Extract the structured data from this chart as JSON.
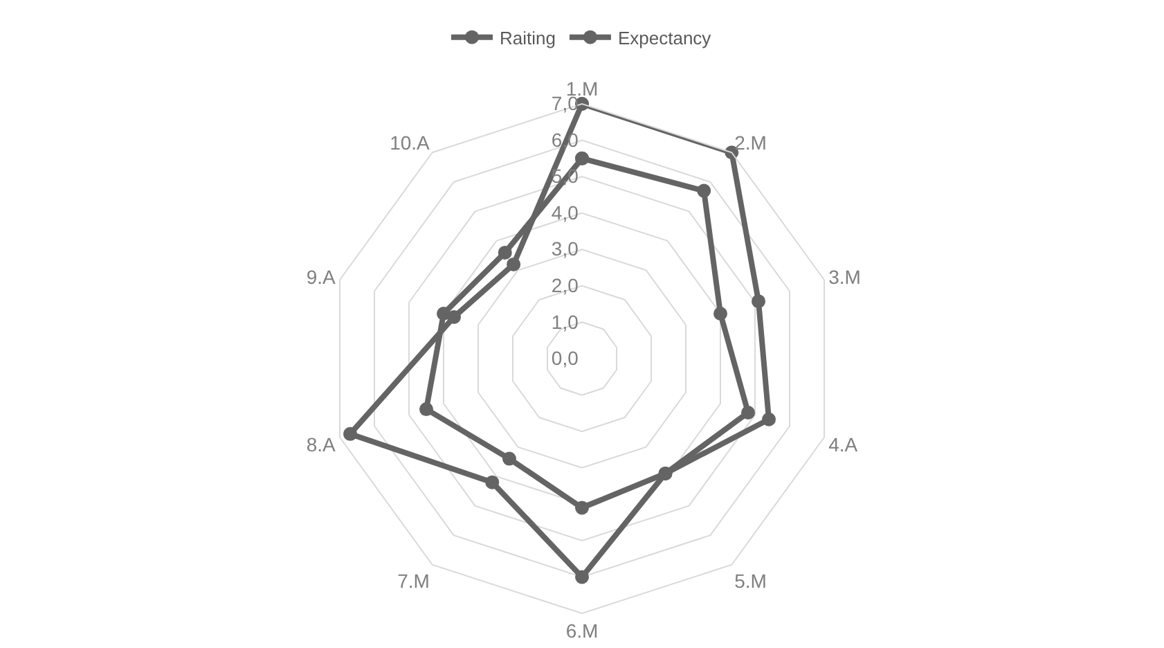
{
  "chart_data": {
    "type": "radar",
    "categories": [
      "1.M",
      "2.M",
      "3.M",
      "4.A",
      "5.M",
      "6.M",
      "7.M",
      "8.A",
      "9.A",
      "10.A"
    ],
    "series": [
      {
        "name": "Raiting",
        "color": "#646464",
        "values": [
          5.5,
          5.7,
          4.0,
          4.8,
          3.9,
          4.1,
          3.4,
          4.5,
          4.0,
          3.6
        ]
      },
      {
        "name": "Expectancy",
        "color": "#646464",
        "values": [
          7.0,
          7.0,
          5.1,
          5.4,
          3.9,
          6.0,
          4.2,
          6.7,
          3.7,
          3.2
        ]
      }
    ],
    "ylim": [
      0,
      7
    ],
    "yticks": [
      {
        "value": 0,
        "label": "0,0"
      },
      {
        "value": 1,
        "label": "1,0"
      },
      {
        "value": 2,
        "label": "2,0"
      },
      {
        "value": 3,
        "label": "3,0"
      },
      {
        "value": 4,
        "label": "4,0"
      },
      {
        "value": 5,
        "label": "5,0"
      },
      {
        "value": 6,
        "label": "6,0"
      },
      {
        "value": 7,
        "label": "7,0"
      }
    ],
    "grid": true,
    "legend": "top",
    "marker": "circle",
    "line_style": "solid"
  }
}
